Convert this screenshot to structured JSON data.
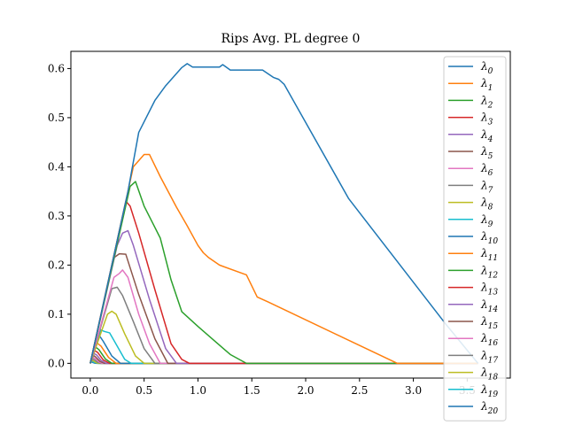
{
  "chart_data": {
    "type": "line",
    "title": "Rips Avg. PL degree 0",
    "xlabel": "",
    "ylabel": "",
    "xlim": [
      -0.18,
      3.9
    ],
    "ylim": [
      -0.03,
      0.635
    ],
    "xticks": [
      0.0,
      0.5,
      1.0,
      1.5,
      2.0,
      2.5,
      3.0,
      3.5
    ],
    "xtick_labels": [
      "0.0",
      "0.5",
      "1.0",
      "1.5",
      "2.0",
      "2.5",
      "3.0",
      "3.5"
    ],
    "yticks": [
      0.0,
      0.1,
      0.2,
      0.3,
      0.4,
      0.5,
      0.6
    ],
    "ytick_labels": [
      "0.0",
      "0.1",
      "0.2",
      "0.3",
      "0.4",
      "0.5",
      "0.6"
    ],
    "grid": false,
    "legend_position": "top-right",
    "series": [
      {
        "name": "λ0",
        "color": "#1f77b4",
        "x": [
          0.0,
          0.35,
          0.45,
          0.6,
          0.7,
          0.85,
          0.9,
          0.95,
          1.2,
          1.23,
          1.3,
          1.6,
          1.7,
          1.75,
          1.8,
          2.4,
          3.3,
          3.6
        ],
        "y": [
          0.0,
          0.35,
          0.47,
          0.535,
          0.565,
          0.602,
          0.61,
          0.603,
          0.603,
          0.608,
          0.597,
          0.597,
          0.582,
          0.578,
          0.568,
          0.335,
          0.08,
          0.0
        ]
      },
      {
        "name": "λ1",
        "color": "#ff7f0e",
        "x": [
          0.0,
          0.4,
          0.5,
          0.55,
          0.65,
          0.8,
          0.9,
          1.0,
          1.05,
          1.1,
          1.2,
          1.45,
          1.55,
          1.65,
          2.85,
          3.6
        ],
        "y": [
          0.0,
          0.4,
          0.425,
          0.425,
          0.38,
          0.318,
          0.28,
          0.24,
          0.225,
          0.215,
          0.2,
          0.18,
          0.135,
          0.125,
          0.0,
          0.0
        ]
      },
      {
        "name": "λ2",
        "color": "#2ca02c",
        "x": [
          0.0,
          0.37,
          0.42,
          0.5,
          0.65,
          0.75,
          0.85,
          1.0,
          1.3,
          1.45,
          3.6
        ],
        "y": [
          0.0,
          0.36,
          0.37,
          0.32,
          0.255,
          0.17,
          0.105,
          0.075,
          0.018,
          0.0,
          0.0
        ]
      },
      {
        "name": "λ3",
        "color": "#d62728",
        "x": [
          0.0,
          0.33,
          0.37,
          0.45,
          0.6,
          0.75,
          0.85,
          0.92,
          3.6
        ],
        "y": [
          0.0,
          0.33,
          0.32,
          0.265,
          0.15,
          0.04,
          0.008,
          0.0,
          0.0
        ]
      },
      {
        "name": "λ4",
        "color": "#9467bd",
        "x": [
          0.0,
          0.25,
          0.3,
          0.35,
          0.4,
          0.55,
          0.7,
          0.8,
          3.6
        ],
        "y": [
          0.0,
          0.24,
          0.265,
          0.27,
          0.24,
          0.13,
          0.03,
          0.0,
          0.0
        ]
      },
      {
        "name": "λ5",
        "color": "#8c564b",
        "x": [
          0.0,
          0.22,
          0.27,
          0.33,
          0.45,
          0.6,
          0.72,
          3.6
        ],
        "y": [
          0.0,
          0.215,
          0.223,
          0.222,
          0.14,
          0.05,
          0.0,
          0.0
        ]
      },
      {
        "name": "λ6",
        "color": "#e377c2",
        "x": [
          0.0,
          0.22,
          0.27,
          0.3,
          0.35,
          0.45,
          0.55,
          0.65,
          3.6
        ],
        "y": [
          0.0,
          0.175,
          0.183,
          0.19,
          0.175,
          0.1,
          0.04,
          0.0,
          0.0
        ]
      },
      {
        "name": "λ7",
        "color": "#7f7f7f",
        "x": [
          0.0,
          0.2,
          0.25,
          0.3,
          0.4,
          0.5,
          0.6,
          3.6
        ],
        "y": [
          0.0,
          0.152,
          0.155,
          0.138,
          0.085,
          0.03,
          0.0,
          0.0
        ]
      },
      {
        "name": "λ8",
        "color": "#bcbd22",
        "x": [
          0.0,
          0.16,
          0.2,
          0.24,
          0.32,
          0.42,
          0.5,
          3.6
        ],
        "y": [
          0.0,
          0.1,
          0.106,
          0.1,
          0.06,
          0.015,
          0.0,
          0.0
        ]
      },
      {
        "name": "λ9",
        "color": "#17becf",
        "x": [
          0.0,
          0.1,
          0.13,
          0.18,
          0.25,
          0.32,
          0.38,
          3.6
        ],
        "y": [
          0.0,
          0.068,
          0.065,
          0.062,
          0.035,
          0.008,
          0.0,
          0.0
        ]
      },
      {
        "name": "λ10",
        "color": "#1f77b4",
        "x": [
          0.0,
          0.08,
          0.12,
          0.2,
          0.28,
          3.6
        ],
        "y": [
          0.0,
          0.058,
          0.045,
          0.015,
          0.0,
          0.0
        ]
      },
      {
        "name": "λ11",
        "color": "#ff7f0e",
        "x": [
          0.0,
          0.06,
          0.1,
          0.17,
          0.24,
          3.6
        ],
        "y": [
          0.0,
          0.042,
          0.035,
          0.012,
          0.0,
          0.0
        ]
      },
      {
        "name": "λ12",
        "color": "#2ca02c",
        "x": [
          0.0,
          0.05,
          0.08,
          0.14,
          0.2,
          3.6
        ],
        "y": [
          0.0,
          0.033,
          0.028,
          0.009,
          0.0,
          0.0
        ]
      },
      {
        "name": "λ13",
        "color": "#d62728",
        "x": [
          0.0,
          0.04,
          0.07,
          0.12,
          0.18,
          3.6
        ],
        "y": [
          0.0,
          0.026,
          0.022,
          0.007,
          0.0,
          0.0
        ]
      },
      {
        "name": "λ14",
        "color": "#9467bd",
        "x": [
          0.0,
          0.035,
          0.06,
          0.1,
          0.15,
          3.6
        ],
        "y": [
          0.0,
          0.02,
          0.017,
          0.006,
          0.0,
          0.0
        ]
      },
      {
        "name": "λ15",
        "color": "#8c564b",
        "x": [
          0.0,
          0.03,
          0.05,
          0.09,
          0.13,
          3.6
        ],
        "y": [
          0.0,
          0.016,
          0.013,
          0.004,
          0.0,
          0.0
        ]
      },
      {
        "name": "λ16",
        "color": "#e377c2",
        "x": [
          0.0,
          0.025,
          0.045,
          0.08,
          0.11,
          3.6
        ],
        "y": [
          0.0,
          0.012,
          0.01,
          0.003,
          0.0,
          0.0
        ]
      },
      {
        "name": "λ17",
        "color": "#7f7f7f",
        "x": [
          0.0,
          0.02,
          0.04,
          0.07,
          0.1,
          3.6
        ],
        "y": [
          0.0,
          0.009,
          0.007,
          0.002,
          0.0,
          0.0
        ]
      },
      {
        "name": "λ18",
        "color": "#bcbd22",
        "x": [
          0.0,
          0.015,
          0.03,
          0.06,
          0.08,
          3.6
        ],
        "y": [
          0.0,
          0.006,
          0.005,
          0.001,
          0.0,
          0.0
        ]
      },
      {
        "name": "λ19",
        "color": "#17becf",
        "x": [
          0.0,
          0.012,
          0.025,
          0.05,
          0.07,
          3.6
        ],
        "y": [
          0.0,
          0.004,
          0.003,
          0.001,
          0.0,
          0.0
        ]
      },
      {
        "name": "λ20",
        "color": "#1f77b4",
        "x": [
          0.0,
          0.01,
          0.02,
          0.04,
          0.06,
          3.6
        ],
        "y": [
          0.0,
          0.003,
          0.002,
          0.0005,
          0.0,
          0.0
        ]
      }
    ]
  }
}
